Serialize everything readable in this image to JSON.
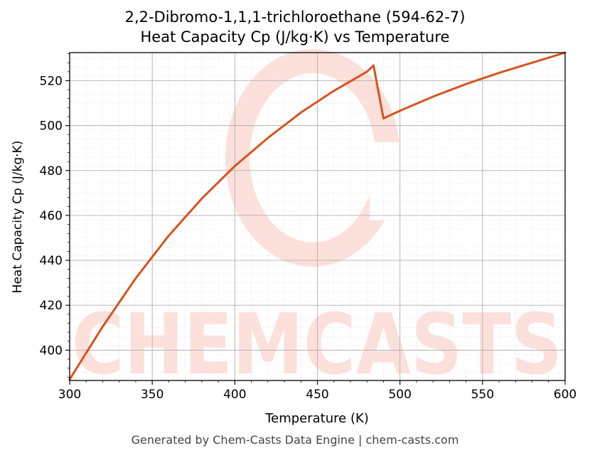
{
  "chart_data": {
    "type": "line",
    "title": [
      "2,2-Dibromo-1,1,1-trichloroethane (594-62-7)",
      "Heat Capacity Cp (J/kg·K) vs Temperature"
    ],
    "xlabel": "Temperature (K)",
    "ylabel": "Heat Capacity Cp (J/kg·K)",
    "xlim": [
      300,
      600
    ],
    "ylim": [
      386.5,
      532.5
    ],
    "xticks": [
      300,
      350,
      400,
      450,
      500,
      550,
      600
    ],
    "xtick_labels": [
      "300",
      "350",
      "400",
      "450",
      "500",
      "550",
      "600"
    ],
    "yticks": [
      400,
      420,
      440,
      460,
      480,
      500,
      520
    ],
    "ytick_labels": [
      "400",
      "420",
      "440",
      "460",
      "480",
      "500",
      "520"
    ],
    "grid": true,
    "legend": "none",
    "line_color": "#d4541f",
    "series": [
      {
        "x": [
          300,
          320,
          340,
          360,
          380,
          400,
          420,
          440,
          460,
          480,
          484,
          490,
          500,
          520,
          540,
          560,
          580,
          600
        ],
        "values": [
          387,
          410.5,
          432,
          451,
          467.5,
          482,
          494.5,
          505.8,
          515.5,
          524,
          526.8,
          503.2,
          506.6,
          512.9,
          518.5,
          523.5,
          528,
          532.5
        ]
      }
    ]
  },
  "watermark": {
    "text": "CHEMCASTS",
    "color": "#fde0da"
  },
  "footer": {
    "text": "Generated by Chem-Casts Data Engine | chem-casts.com"
  }
}
